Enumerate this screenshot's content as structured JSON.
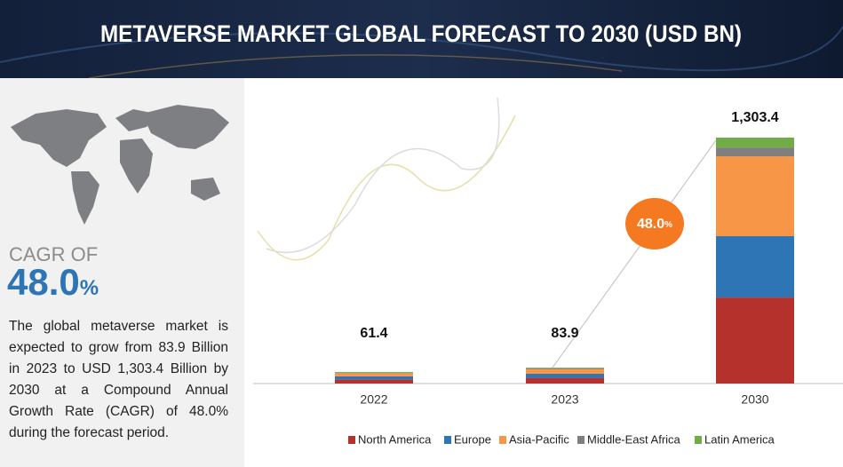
{
  "header": {
    "title": "METAVERSE MARKET GLOBAL FORECAST TO 2030 (USD BN)"
  },
  "sidebar": {
    "cagr_label": "CAGR OF",
    "cagr_number": "48.0",
    "cagr_unit": "%",
    "description": "The global metaverse market is expected to grow from 83.9 Billion in 2023 to USD 1,303.4 Billion by 2030 at a Compound Annual Growth Rate (CAGR) of 48.0% during the forecast period."
  },
  "chart_data": {
    "type": "stacked_bar",
    "categories": [
      "2022",
      "2023",
      "2030"
    ],
    "series": [
      {
        "name": "North America",
        "color": "#b5312c",
        "values": [
          22,
          30,
          456
        ]
      },
      {
        "name": "Europe",
        "color": "#2e75b6",
        "values": [
          16,
          22,
          325
        ]
      },
      {
        "name": "Asia-Pacific",
        "color": "#f79646",
        "values": [
          17,
          24,
          423
        ]
      },
      {
        "name": "Middle-East Africa",
        "color": "#7f7f7f",
        "values": [
          3,
          4,
          47
        ]
      },
      {
        "name": "Latin America",
        "color": "#70ad47",
        "values": [
          3.4,
          3.9,
          52.4
        ]
      }
    ],
    "totals": {
      "values": [
        61.4,
        83.9,
        1303.4
      ],
      "value_labels": [
        "61.4",
        "83.9",
        "1,303.4"
      ]
    },
    "annotation": {
      "number": "48.0",
      "unit": "%"
    },
    "ylim": [
      0,
      1303.4
    ]
  }
}
